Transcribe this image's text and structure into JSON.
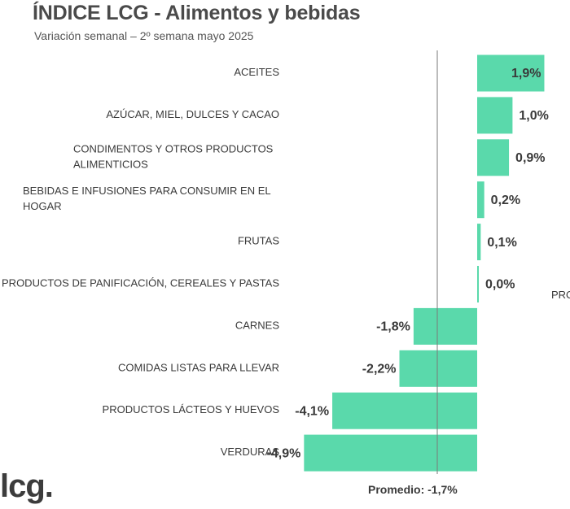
{
  "title": "ÍNDICE LCG - Alimentos y bebidas",
  "subtitle": "Variación semanal – 2º semana mayo 2025",
  "logo_text": "lcg.",
  "stray_text": "PRO",
  "colors": {
    "bar": "#5ad9ab",
    "average_line": "#7a7a7a",
    "text": "#3a3a3a"
  },
  "chart_data": {
    "type": "bar",
    "orientation": "horizontal",
    "categories": [
      "ACEITES",
      "AZÚCAR, MIEL, DULCES Y CACAO",
      "CONDIMENTOS Y OTROS PRODUCTOS ALIMENTICIOS",
      "BEBIDAS E INFUSIONES PARA CONSUMIR EN EL HOGAR",
      "FRUTAS",
      "PRODUCTOS DE PANIFICACIÓN, CEREALES Y PASTAS",
      "CARNES",
      "COMIDAS LISTAS PARA LLEVAR",
      "PRODUCTOS LÁCTEOS Y HUEVOS",
      "VERDURAS"
    ],
    "category_lines": [
      [
        "ACEITES"
      ],
      [
        "AZÚCAR, MIEL, DULCES Y CACAO"
      ],
      [
        "CONDIMENTOS Y OTROS PRODUCTOS",
        "ALIMENTICIOS"
      ],
      [
        "BEBIDAS E INFUSIONES PARA CONSUMIR EN EL",
        "HOGAR"
      ],
      [
        "FRUTAS"
      ],
      [
        "PRODUCTOS DE PANIFICACIÓN, CEREALES Y PASTAS"
      ],
      [
        "CARNES"
      ],
      [
        "COMIDAS LISTAS PARA LLEVAR"
      ],
      [
        "PRODUCTOS LÁCTEOS Y HUEVOS"
      ],
      [
        "VERDURAS"
      ]
    ],
    "values": [
      1.9,
      1.0,
      0.9,
      0.2,
      0.1,
      0.0,
      -1.8,
      -2.2,
      -4.1,
      -4.9
    ],
    "value_labels": [
      "1,9%",
      "1,0%",
      "0,9%",
      "0,2%",
      "0,1%",
      "0,0%",
      "-1,8%",
      "-2,2%",
      "-4,1%",
      "-4,9%"
    ],
    "average": -1.7,
    "average_label": "Promedio: -1,7%",
    "unit": "%"
  }
}
